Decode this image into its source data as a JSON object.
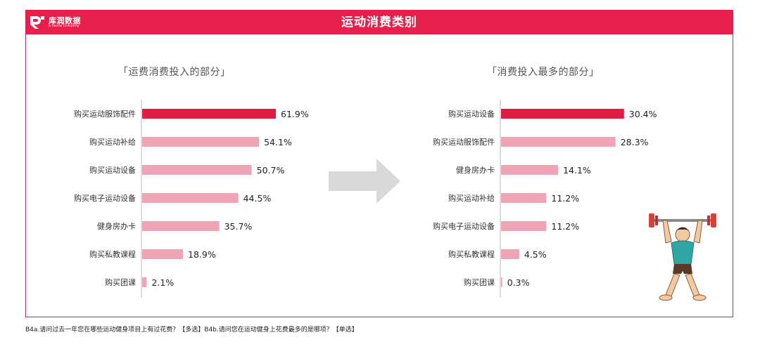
{
  "header": {
    "brand": "库润数据",
    "brand_sub": "a tauna company",
    "title": "运动消费类别"
  },
  "footnote": "B4a.请问过去一年您在哪些运动健身项目上有过花费？【多选】B4b.请问您在运动健身上花费最多的是哪项？【单选】",
  "colors": {
    "header": "#e6204a",
    "highlight_bar": "#e01e44",
    "bar": "#f0a3b4",
    "axis": "#bbbbbb",
    "arrow": "#d9d9d9"
  },
  "icons": {
    "logo": "kurun-logo-icon",
    "arrow": "right-arrow-icon",
    "mascot": "weightlifter-icon"
  },
  "chart_data": [
    {
      "type": "bar",
      "orientation": "horizontal",
      "title": "「运费消费投入的部分」",
      "categories": [
        "购买运动服饰配件",
        "购买运动补给",
        "购买运动设备",
        "购买电子运动设备",
        "健身房办卡",
        "购买私教课程",
        "购买团课"
      ],
      "values": [
        61.9,
        54.1,
        50.7,
        44.5,
        35.7,
        18.9,
        2.1
      ],
      "labels": [
        "61.9%",
        "54.1%",
        "50.7%",
        "44.5%",
        "35.7%",
        "18.9%",
        "2.1%"
      ],
      "unit": "%",
      "highlight_index": 0,
      "grid": false
    },
    {
      "type": "bar",
      "orientation": "horizontal",
      "title": "「消费投入最多的部分」",
      "categories": [
        "购买运动设备",
        "购买运动服饰配件",
        "健身房办卡",
        "购买运动补给",
        "购买电子运动设备",
        "购买私教课程",
        "购买团课"
      ],
      "values": [
        30.4,
        28.3,
        14.1,
        11.2,
        11.2,
        4.5,
        0.3
      ],
      "labels": [
        "30.4%",
        "28.3%",
        "14.1%",
        "11.2%",
        "11.2%",
        "4.5%",
        "0.3%"
      ],
      "unit": "%",
      "highlight_index": 0,
      "grid": false
    }
  ]
}
